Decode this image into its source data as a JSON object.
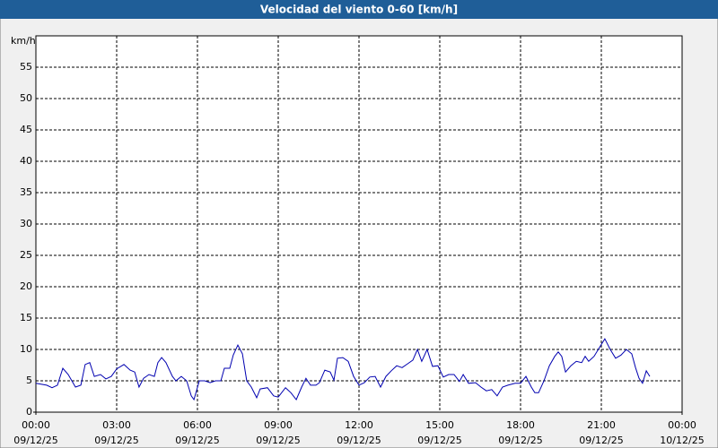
{
  "chart_data": {
    "type": "line",
    "title": "Velocidad del viento 0-60 [km/h]",
    "y_label": "km/h",
    "color": "#0000b0",
    "grid": true,
    "xlim": [
      0,
      24
    ],
    "xticks": [
      {
        "value": 0,
        "label": "00:00"
      },
      {
        "value": 3,
        "label": "03:00"
      },
      {
        "value": 6,
        "label": "06:00"
      },
      {
        "value": 9,
        "label": "09:00"
      },
      {
        "value": 12,
        "label": "12:00"
      },
      {
        "value": 15,
        "label": "15:00"
      },
      {
        "value": 18,
        "label": "18:00"
      },
      {
        "value": 21,
        "label": "21:00"
      },
      {
        "value": 24,
        "label": "00:00"
      }
    ],
    "xtick_dates": [
      "09/12/25",
      "09/12/25",
      "09/12/25",
      "09/12/25",
      "09/12/25",
      "09/12/25",
      "09/12/25",
      "09/12/25",
      "10/12/25"
    ],
    "ylim": [
      0,
      60
    ],
    "yticks": [
      0,
      5,
      10,
      15,
      20,
      25,
      30,
      35,
      40,
      45,
      50,
      55
    ],
    "x": [
      0,
      0.4,
      0.6,
      0.8,
      1,
      1.2,
      1.47,
      1.67,
      1.83,
      2,
      2.17,
      2.4,
      2.6,
      2.8,
      3,
      3.27,
      3.5,
      3.67,
      3.83,
      4,
      4.2,
      4.4,
      4.53,
      4.67,
      4.83,
      5.07,
      5.2,
      5.4,
      5.6,
      5.77,
      5.87,
      6.07,
      6.27,
      6.47,
      6.67,
      6.87,
      7,
      7.2,
      7.33,
      7.5,
      7.67,
      7.83,
      8,
      8.2,
      8.33,
      8.6,
      8.83,
      9,
      9.27,
      9.47,
      9.67,
      9.87,
      10.03,
      10.2,
      10.4,
      10.53,
      10.73,
      10.93,
      11.07,
      11.2,
      11.4,
      11.6,
      11.8,
      12,
      12.2,
      12.4,
      12.6,
      12.8,
      13,
      13.2,
      13.4,
      13.6,
      13.8,
      14,
      14.17,
      14.33,
      14.53,
      14.73,
      14.93,
      15.13,
      15.33,
      15.53,
      15.73,
      15.87,
      16.07,
      16.33,
      16.53,
      16.73,
      16.93,
      17.13,
      17.33,
      17.53,
      17.8,
      18,
      18.2,
      18.4,
      18.53,
      18.67,
      18.87,
      19.07,
      19.27,
      19.4,
      19.53,
      19.67,
      19.87,
      20.07,
      20.27,
      20.4,
      20.53,
      20.73,
      20.93,
      21.13,
      21.33,
      21.53,
      21.73,
      21.93,
      22.13,
      22.27,
      22.4,
      22.53,
      22.67,
      22.8
    ],
    "values": [
      4.6,
      4.3,
      3.9,
      4.3,
      7,
      6,
      4,
      4.3,
      7.6,
      7.9,
      5.7,
      6,
      5.3,
      5.7,
      6.9,
      7.6,
      6.7,
      6.4,
      4,
      5.4,
      6,
      5.7,
      7.9,
      8.7,
      7.9,
      5.7,
      5,
      5.7,
      5,
      2.6,
      2,
      5,
      5,
      4.7,
      5,
      5,
      7,
      7,
      9.1,
      10.7,
      9.3,
      5,
      4,
      2.3,
      3.7,
      3.9,
      2.6,
      2.4,
      3.9,
      3.1,
      2,
      4,
      5.4,
      4.3,
      4.3,
      4.7,
      6.7,
      6.4,
      5.1,
      8.6,
      8.7,
      8.1,
      5.7,
      4.3,
      4.7,
      5.6,
      5.7,
      4,
      5.7,
      6.6,
      7.4,
      7.1,
      7.7,
      8.3,
      10,
      8.1,
      10,
      7.3,
      7.4,
      5.6,
      6,
      6,
      4.9,
      6,
      4.6,
      4.7,
      4,
      3.4,
      3.6,
      2.6,
      4,
      4.3,
      4.6,
      4.6,
      5.7,
      4,
      3.1,
      3.1,
      5,
      7.4,
      8.9,
      9.6,
      8.9,
      6.4,
      7.4,
      8.1,
      7.9,
      8.9,
      8.1,
      8.9,
      10.3,
      11.7,
      10,
      8.6,
      9.1,
      10,
      9.3,
      7.1,
      5.4,
      4.6,
      6.6,
      5.7
    ]
  }
}
